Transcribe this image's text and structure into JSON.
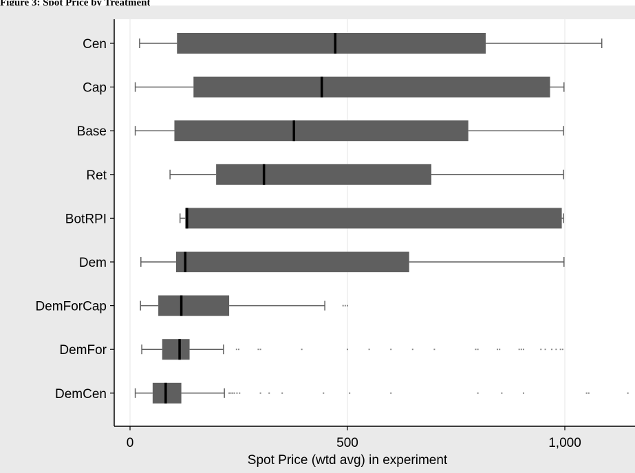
{
  "header": {
    "title": "Figure 3: Spot Price by Treatment"
  },
  "chart_data": {
    "type": "box",
    "title": "",
    "xlabel": "Spot Price (wtd avg) in experiment",
    "ylabel": "",
    "xlim": [
      -40,
      1160
    ],
    "x_ticks": [
      0,
      500,
      1000
    ],
    "x_tick_labels": [
      "0",
      "500",
      "1,000"
    ],
    "grid": "vertical at x ticks",
    "colors": {
      "background": "#eaeaea",
      "plot_area": "#ffffff",
      "box_fill": "#5f5f5f",
      "median": "#000000",
      "whisker": "#5f5f5f",
      "outlier": "#888888",
      "gridline": "#e6e6e6"
    },
    "categories": [
      "Cen",
      "Cap",
      "Base",
      "Ret",
      "BotRPI",
      "Dem",
      "DemForCap",
      "DemFor",
      "DemCen"
    ],
    "boxes": [
      {
        "category": "Cen",
        "whisker_low": 22,
        "q1": 108,
        "median": 472,
        "q3": 818,
        "whisker_high": 1085,
        "outliers": []
      },
      {
        "category": "Cap",
        "whisker_low": 12,
        "q1": 146,
        "median": 441,
        "q3": 966,
        "whisker_high": 998,
        "outliers": []
      },
      {
        "category": "Base",
        "whisker_low": 12,
        "q1": 102,
        "median": 377,
        "q3": 778,
        "whisker_high": 997,
        "outliers": []
      },
      {
        "category": "Ret",
        "whisker_low": 92,
        "q1": 198,
        "median": 308,
        "q3": 693,
        "whisker_high": 997,
        "outliers": []
      },
      {
        "category": "BotRPI",
        "whisker_low": 115,
        "q1": 127,
        "median": 131,
        "q3": 993,
        "whisker_high": 997,
        "outliers": []
      },
      {
        "category": "Dem",
        "whisker_low": 25,
        "q1": 106,
        "median": 127,
        "q3": 642,
        "whisker_high": 998,
        "outliers": []
      },
      {
        "category": "DemForCap",
        "whisker_low": 24,
        "q1": 65,
        "median": 118,
        "q3": 228,
        "whisker_high": 448,
        "outliers": [
          490,
          495,
          500
        ]
      },
      {
        "category": "DemFor",
        "whisker_low": 27,
        "q1": 74,
        "median": 114,
        "q3": 137,
        "whisker_high": 215,
        "outliers": [
          245,
          250,
          295,
          300,
          395,
          500,
          550,
          600,
          650,
          700,
          795,
          800,
          845,
          850,
          895,
          900,
          905,
          945,
          955,
          970,
          980,
          990,
          995
        ]
      },
      {
        "category": "DemCen",
        "whisker_low": 12,
        "q1": 52,
        "median": 82,
        "q3": 118,
        "whisker_high": 217,
        "outliers": [
          228,
          232,
          236,
          240,
          246,
          252,
          300,
          320,
          350,
          445,
          505,
          600,
          800,
          855,
          905,
          1050,
          1055,
          1145
        ]
      }
    ]
  }
}
